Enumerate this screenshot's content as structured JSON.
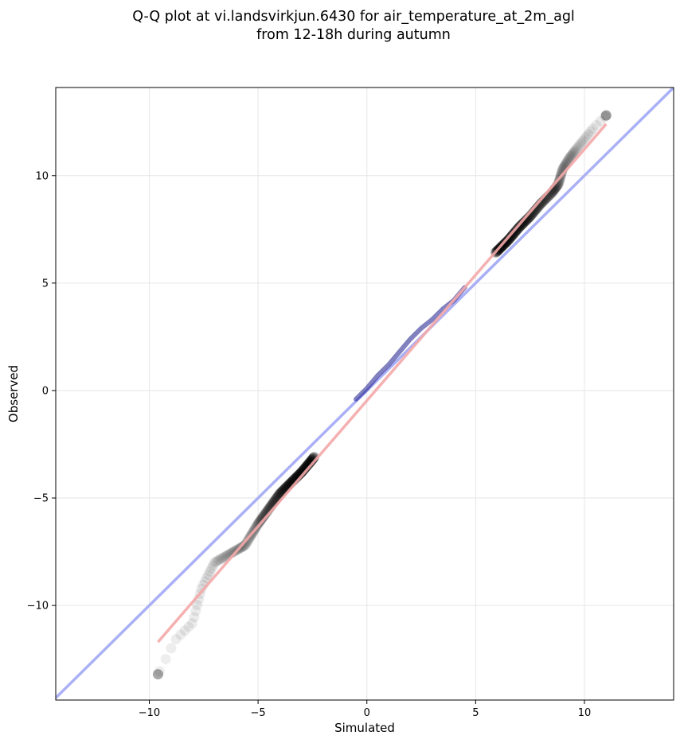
{
  "chart_data": {
    "type": "scatter",
    "title_line1": "Q-Q plot at vi.landsvirkjun.6430 for air_temperature_at_2m_agl",
    "title_line2": "from 12-18h during autumn",
    "xlabel": "Simulated",
    "ylabel": "Observed",
    "xlim": [
      -14.3,
      14.1
    ],
    "ylim": [
      -14.4,
      14.1
    ],
    "xticks": [
      -10,
      -5,
      0,
      5,
      10
    ],
    "yticks": [
      -10,
      -5,
      0,
      5,
      10
    ],
    "xtick_labels": [
      "−10",
      "−5",
      "0",
      "5",
      "10"
    ],
    "ytick_labels": [
      "−10",
      "−5",
      "0",
      "5",
      "10"
    ],
    "grid": true,
    "identity_line": {
      "color": "#aab0f5",
      "x": [
        -14.3,
        14.1
      ],
      "y": [
        -14.3,
        14.1
      ]
    },
    "fit_line": {
      "color": "#f4a8a8",
      "x": [
        -9.6,
        11.0
      ],
      "y": [
        -11.7,
        12.4
      ]
    },
    "quantile_curve": {
      "x": [
        -9.6,
        -8.8,
        -8.0,
        -7.6,
        -7.0,
        -6.3,
        -5.6,
        -5.0,
        -4.5,
        -4.0,
        -3.5,
        -3.0,
        -2.5,
        -2.0,
        -1.5,
        -1.0,
        -0.5,
        0.0,
        0.5,
        1.0,
        1.5,
        2.0,
        2.5,
        3.0,
        3.5,
        4.0,
        4.5,
        5.0,
        5.5,
        6.0,
        6.5,
        7.0,
        7.5,
        8.0,
        8.5,
        8.8,
        9.0,
        9.3,
        9.6,
        10.0,
        10.4,
        11.0
      ],
      "y": [
        -13.2,
        -11.6,
        -10.8,
        -9.2,
        -8.0,
        -7.6,
        -7.2,
        -6.2,
        -5.5,
        -4.8,
        -4.3,
        -3.8,
        -3.2,
        -2.5,
        -1.8,
        -1.1,
        -0.4,
        0.1,
        0.7,
        1.2,
        1.8,
        2.4,
        2.9,
        3.3,
        3.8,
        4.2,
        4.8,
        5.4,
        6.0,
        6.5,
        7.0,
        7.6,
        8.1,
        8.7,
        9.2,
        9.6,
        10.3,
        10.8,
        11.2,
        11.7,
        12.2,
        12.8
      ]
    },
    "point_color": "#000000",
    "center_color": "#1a1a8c",
    "point_count": 420
  }
}
